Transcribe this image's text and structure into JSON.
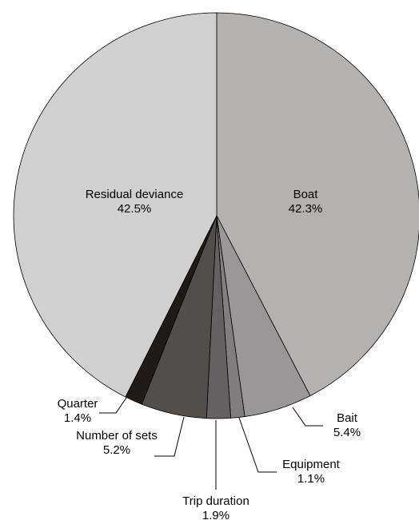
{
  "chart_data": {
    "type": "pie",
    "title": "",
    "slices": [
      {
        "label": "Boat",
        "value": 42.3,
        "value_label": "42.3%",
        "color": "#b4b2b0"
      },
      {
        "label": "Bait",
        "value": 5.4,
        "value_label": "5.4%",
        "color": "#999797"
      },
      {
        "label": "Equipment",
        "value": 1.1,
        "value_label": "1.1%",
        "color": "#807e7e"
      },
      {
        "label": "Trip duration",
        "value": 1.9,
        "value_label": "1.9%",
        "color": "#636161"
      },
      {
        "label": "Number of sets",
        "value": 5.2,
        "value_label": "5.2%",
        "color": "#524e4c"
      },
      {
        "label": "Quarter",
        "value": 1.4,
        "value_label": "1.4%",
        "color": "#201a18"
      },
      {
        "label": "Residual deviance",
        "value": 42.5,
        "value_label": "42.5%",
        "color": "#d0d0d0"
      }
    ],
    "start_angle_deg": 0,
    "direction": "clockwise",
    "inside_labels": [
      "Boat",
      "Residual deviance"
    ],
    "outside_labels": [
      "Bait",
      "Equipment",
      "Trip duration",
      "Number of sets",
      "Quarter"
    ]
  }
}
